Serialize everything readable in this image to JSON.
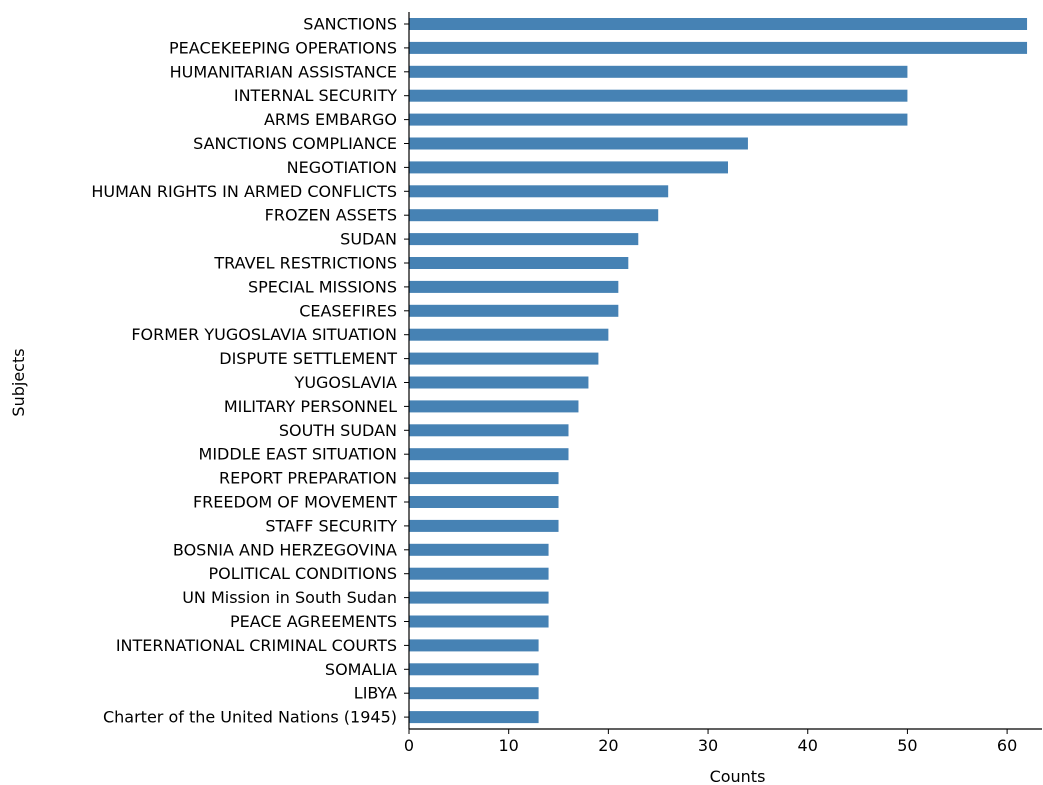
{
  "chart_data": {
    "type": "bar",
    "orientation": "horizontal",
    "title": "",
    "xlabel": "Counts",
    "ylabel": "Subjects",
    "xlim": [
      0,
      63.5
    ],
    "xticks": [
      0,
      10,
      20,
      30,
      40,
      50,
      60
    ],
    "grid": false,
    "legend": "none",
    "bar_color": "#4682b4",
    "categories": [
      "SANCTIONS",
      "PEACEKEEPING OPERATIONS",
      "HUMANITARIAN ASSISTANCE",
      "INTERNAL SECURITY",
      "ARMS EMBARGO",
      "SANCTIONS COMPLIANCE",
      "NEGOTIATION",
      "HUMAN RIGHTS IN ARMED CONFLICTS",
      "FROZEN ASSETS",
      "SUDAN",
      "TRAVEL RESTRICTIONS",
      "SPECIAL MISSIONS",
      "CEASEFIRES",
      "FORMER YUGOSLAVIA SITUATION",
      "DISPUTE SETTLEMENT",
      "YUGOSLAVIA",
      "MILITARY PERSONNEL",
      "SOUTH SUDAN",
      "MIDDLE EAST SITUATION",
      "REPORT PREPARATION",
      "FREEDOM OF MOVEMENT",
      "STAFF SECURITY",
      "BOSNIA AND HERZEGOVINA",
      "POLITICAL CONDITIONS",
      "UN Mission in South Sudan",
      "PEACE AGREEMENTS",
      "INTERNATIONAL CRIMINAL COURTS",
      "SOMALIA",
      "LIBYA",
      "Charter of the United Nations (1945)"
    ],
    "values": [
      62,
      62,
      50,
      50,
      50,
      34,
      32,
      26,
      25,
      23,
      22,
      21,
      21,
      20,
      19,
      18,
      17,
      16,
      16,
      15,
      15,
      15,
      14,
      14,
      14,
      14,
      13,
      13,
      13,
      13
    ]
  }
}
